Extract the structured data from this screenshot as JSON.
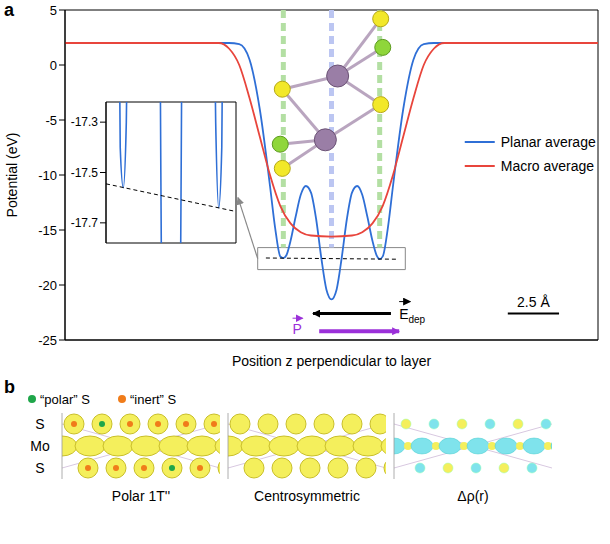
{
  "chart_data": [
    {
      "type": "line",
      "panel_label": "a",
      "y_label": "Potential (eV)",
      "x_label": "Position z perpendicular to layer",
      "xlim": [
        -13,
        13
      ],
      "ylim": [
        -25,
        5
      ],
      "yticks": [
        -25,
        -20,
        -15,
        -10,
        -5,
        0,
        5
      ],
      "tick_labels": "y",
      "legend": "right",
      "series": [
        {
          "name": "Planar average",
          "color": "#2f6fd6",
          "x": [
            -13,
            -5,
            -4.5,
            -4,
            -3.5,
            -3,
            -2.75,
            -2.5,
            -2.35,
            -2.2,
            -2,
            -1.75,
            -1.5,
            -1.25,
            -1,
            -0.75,
            -0.5,
            -0.25,
            0,
            0.25,
            0.5,
            0.75,
            1,
            1.25,
            1.5,
            1.75,
            2,
            2.2,
            2.35,
            2.5,
            2.75,
            3,
            3.5,
            4,
            4.5,
            5,
            13
          ],
          "values": [
            2,
            2,
            1.9,
            0.5,
            -4,
            -11,
            -14.8,
            -17.4,
            -17.56,
            -17.3,
            -16,
            -13.8,
            -11.8,
            -11,
            -11.6,
            -14,
            -17.5,
            -20.4,
            -21.3,
            -20.4,
            -17.5,
            -14,
            -11.6,
            -11,
            -11.8,
            -13.8,
            -16,
            -17.3,
            -17.64,
            -17.4,
            -14.8,
            -11,
            -4,
            0.5,
            1.9,
            2,
            2
          ]
        },
        {
          "name": "Macro average",
          "color": "#e8453c",
          "x": [
            -13,
            -5.5,
            -5,
            -4.5,
            -4,
            -3.5,
            -3,
            -2.5,
            -2,
            -1.5,
            -1,
            0,
            1,
            1.5,
            2,
            2.5,
            3,
            3.5,
            4,
            4.5,
            5,
            5.5,
            13
          ],
          "values": [
            2,
            2,
            1.5,
            0,
            -3,
            -6.5,
            -10,
            -12.8,
            -14.4,
            -15.2,
            -15.5,
            -15.6,
            -15.5,
            -15.2,
            -14.4,
            -12.8,
            -10,
            -6.5,
            -3,
            0,
            1.5,
            2,
            2
          ]
        }
      ],
      "atom_planes": [
        {
          "z": -2.35,
          "color": "#b3dfa3"
        },
        {
          "z": 0,
          "color": "#bcc6f2"
        },
        {
          "z": 2.35,
          "color": "#b3dfa3"
        }
      ],
      "inset_region": {
        "x": [
          -3.6,
          3.6
        ],
        "y": [
          -18.6,
          -16.6
        ]
      },
      "dashed_line": {
        "x": [
          -3.2,
          3.2
        ],
        "values": [
          -17.545,
          -17.655
        ]
      },
      "scale_bar": {
        "value": 2.5,
        "label": "2.5 Å"
      },
      "field_arrow": {
        "label": "E",
        "subscript": "dep",
        "color": "#000000"
      },
      "polarization_arrow": {
        "label": "P",
        "color": "#9b30d9"
      }
    },
    {
      "type": "line",
      "xlim": [
        -3.2,
        3.2
      ],
      "ylim": [
        -17.78,
        -17.22
      ],
      "yticks": [
        -17.3,
        -17.5,
        -17.7
      ],
      "tick_labels": "y",
      "series": [
        "Planar average"
      ]
    }
  ],
  "panel_b": {
    "panel_label": "b",
    "legend": [
      {
        "label": "“polar” S",
        "color": "#1fa64a"
      },
      {
        "label": "“inert” S",
        "color": "#f07c1a"
      }
    ],
    "row_labels": [
      "S",
      "Mo",
      "S"
    ],
    "images": [
      "Polar 1T''",
      "Centrosymmetric",
      "Δρ(r)"
    ]
  }
}
